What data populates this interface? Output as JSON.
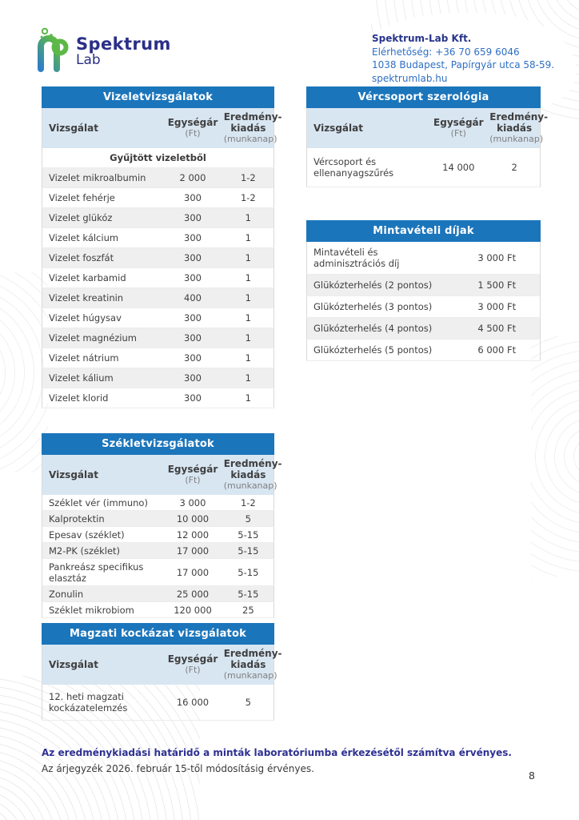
{
  "logo": {
    "name": "Spektrum",
    "sub": "Lab"
  },
  "contact": {
    "company": "Spektrum-Lab Kft.",
    "phone": "Elérhetőség: +36 70 659 6046",
    "address": "1038 Budapest, Papírgyár utca 58-59.",
    "website": "spektrumlab.hu"
  },
  "table_columns": {
    "test": "Vizsgálat",
    "price": "Egységár",
    "price_unit": "(Ft)",
    "result_l1": "Eredmény-",
    "result_l2": "kiadás",
    "result_unit": "(munkanap)"
  },
  "urine_table": {
    "title": "Vizeletvizsgálatok",
    "subheader": "Gyűjtött vizeletből",
    "rows": [
      {
        "name": "Vizelet mikroalbumin",
        "price": "2 000",
        "days": "1-2"
      },
      {
        "name": "Vizelet fehérje",
        "price": "300",
        "days": "1-2"
      },
      {
        "name": "Vizelet glükóz",
        "price": "300",
        "days": "1"
      },
      {
        "name": "Vizelet kálcium",
        "price": "300",
        "days": "1"
      },
      {
        "name": "Vizelet foszfát",
        "price": "300",
        "days": "1"
      },
      {
        "name": "Vizelet karbamid",
        "price": "300",
        "days": "1"
      },
      {
        "name": "Vizelet kreatinin",
        "price": "400",
        "days": "1"
      },
      {
        "name": "Vizelet húgysav",
        "price": "300",
        "days": "1"
      },
      {
        "name": "Vizelet magnézium",
        "price": "300",
        "days": "1"
      },
      {
        "name": "Vizelet nátrium",
        "price": "300",
        "days": "1"
      },
      {
        "name": "Vizelet kálium",
        "price": "300",
        "days": "1"
      },
      {
        "name": "Vizelet klorid",
        "price": "300",
        "days": "1"
      }
    ]
  },
  "blood_group_table": {
    "title": "Vércsoport szerológia",
    "rows": [
      {
        "name": "Vércsoport és ellenanyagszűrés",
        "price": "14 000",
        "days": "2"
      }
    ]
  },
  "sampling_table": {
    "title": "Mintavételi díjak",
    "rows": [
      {
        "name": "Mintavételi és adminisztrációs díj",
        "price": "3 000 Ft"
      },
      {
        "name": "Glükózterhelés (2 pontos)",
        "price": "1 500 Ft"
      },
      {
        "name": "Glükózterhelés (3 pontos)",
        "price": "3 000 Ft"
      },
      {
        "name": "Glükózterhelés (4 pontos)",
        "price": "4 500 Ft"
      },
      {
        "name": "Glükózterhelés (5 pontos)",
        "price": "6 000 Ft"
      }
    ]
  },
  "stool_table": {
    "title": "Székletvizsgálatok",
    "rows": [
      {
        "name": "Széklet vér (immuno)",
        "price": "3 000",
        "days": "1-2"
      },
      {
        "name": "Kalprotektin",
        "price": "10 000",
        "days": "5"
      },
      {
        "name": "Epesav (széklet)",
        "price": "12 000",
        "days": "5-15"
      },
      {
        "name": "M2-PK (széklet)",
        "price": "17 000",
        "days": "5-15"
      },
      {
        "name": "Pankreász specifikus elasztáz",
        "price": "17 000",
        "days": "5-15"
      },
      {
        "name": "Zonulin",
        "price": "25 000",
        "days": "5-15"
      },
      {
        "name": "Széklet mikrobiom",
        "price": "120 000",
        "days": "25"
      }
    ]
  },
  "fetal_table": {
    "title": "Magzati kockázat vizsgálatok",
    "rows": [
      {
        "name": "12. heti magzati kockázatelemzés",
        "price": "16 000",
        "days": "5"
      }
    ]
  },
  "footer": {
    "line1": "Az eredménykiadási határidő a minták laboratóriumba érkezésétől számítva érvényes.",
    "line2": "Az árjegyzék 2026. február 15-től módosításig érvényes."
  },
  "page": {
    "number": "8"
  },
  "colors": {
    "header_blue": "#1b75bb",
    "column_header_bg": "#d8e6f2",
    "alt_row": "#efefef",
    "logo_navy": "#2b2f86",
    "contact_blue": "#2f6fc4",
    "footer_navy": "#2e3192",
    "logo_green": "#5cb947"
  }
}
